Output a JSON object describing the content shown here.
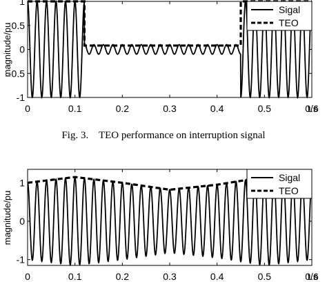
{
  "figure_caption": "Fig. 3.    TEO performance on interruption signal",
  "chart_data": [
    {
      "type": "line",
      "title": "",
      "xlabel": "t/s",
      "ylabel": "magnitude/pu",
      "xlim": [
        0,
        0.6
      ],
      "ylim": [
        -1,
        1
      ],
      "x_ticks": [
        "0",
        "0.1",
        "0.2",
        "0.3",
        "0.4",
        "0.5",
        "0.6"
      ],
      "y_ticks": [
        "1",
        "0.5",
        "0",
        "-0.5",
        "-1"
      ],
      "grid": false,
      "legend_position": "top-right",
      "signal_frequency_hz": 50,
      "interruption_interval_s": [
        0.12,
        0.45
      ],
      "residual_amplitude_pu": 0.1,
      "series": [
        {
          "name": "Sigal",
          "style": "solid",
          "description_points": {
            "x": [
              0,
              0.12,
              0.12,
              0.45,
              0.45,
              0.6
            ],
            "amplitude": [
              1,
              1,
              0.1,
              0.1,
              1,
              1
            ]
          }
        },
        {
          "name": "TEO",
          "style": "dashed",
          "x": [
            0,
            0.12,
            0.12,
            0.45,
            0.45,
            0.6
          ],
          "y": [
            1,
            1,
            0.08,
            0.08,
            1,
            1
          ]
        }
      ]
    },
    {
      "type": "line",
      "title": "",
      "xlabel": "t/s",
      "ylabel": "magnitude/pu",
      "xlim": [
        0,
        0.6
      ],
      "ylim": [
        -1.15,
        1.35
      ],
      "x_ticks": [
        "0",
        "0.1",
        "0.2",
        "0.3",
        "0.4",
        "0.5",
        "0.6"
      ],
      "y_ticks": [
        "1",
        "0",
        "-1"
      ],
      "grid": false,
      "legend_position": "top-right",
      "signal_frequency_hz": 50,
      "series": [
        {
          "name": "Sigal",
          "style": "solid"
        },
        {
          "name": "TEO",
          "style": "dashed",
          "x": [
            0,
            0.1,
            0.2,
            0.3,
            0.4,
            0.5,
            0.6
          ],
          "y": [
            1.0,
            1.15,
            1.0,
            0.82,
            0.95,
            1.15,
            1.0
          ]
        }
      ]
    }
  ]
}
